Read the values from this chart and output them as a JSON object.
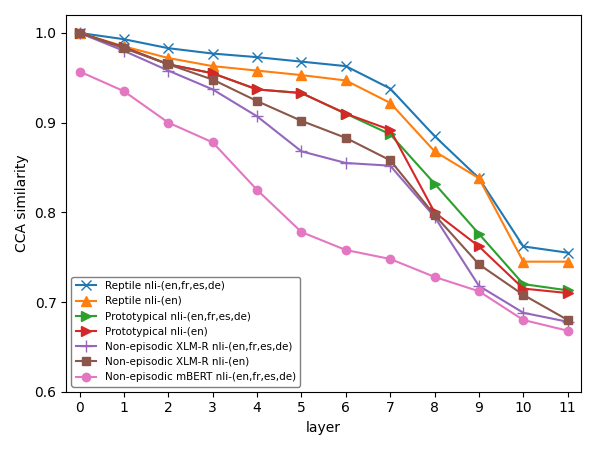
{
  "layers": [
    0,
    1,
    2,
    3,
    4,
    5,
    6,
    7,
    8,
    9,
    10,
    11
  ],
  "series": [
    {
      "label": "Reptile nli-(en,fr,es,de)",
      "color": "#1f77b4",
      "marker": "x",
      "markersize": 7,
      "values": [
        1.0,
        0.993,
        0.983,
        0.977,
        0.973,
        0.968,
        0.963,
        0.938,
        0.885,
        0.838,
        0.762,
        0.755
      ]
    },
    {
      "label": "Reptile nli-(en)",
      "color": "#ff7f0e",
      "marker": "^",
      "markersize": 7,
      "values": [
        1.0,
        0.985,
        0.972,
        0.963,
        0.958,
        0.953,
        0.947,
        0.922,
        0.868,
        0.838,
        0.745,
        0.745
      ]
    },
    {
      "label": "Prototypical nli-(en,fr,es,de)",
      "color": "#2ca02c",
      "marker": ">",
      "markersize": 7,
      "values": [
        1.0,
        0.984,
        0.965,
        0.955,
        0.937,
        0.933,
        0.91,
        0.887,
        0.832,
        0.776,
        0.72,
        0.713
      ]
    },
    {
      "label": "Prototypical nli-(en)",
      "color": "#d62728",
      "marker": ">",
      "markersize": 7,
      "values": [
        1.0,
        0.984,
        0.965,
        0.955,
        0.937,
        0.933,
        0.91,
        0.892,
        0.8,
        0.762,
        0.715,
        0.71
      ]
    },
    {
      "label": "Non-episodic XLM-R nli-(en,fr,es,de)",
      "color": "#9467bd",
      "marker": "+",
      "markersize": 8,
      "values": [
        1.0,
        0.98,
        0.958,
        0.937,
        0.907,
        0.868,
        0.855,
        0.852,
        0.795,
        0.718,
        0.688,
        0.678
      ]
    },
    {
      "label": "Non-episodic XLM-R nli-(en)",
      "color": "#8c564b",
      "marker": "s",
      "markersize": 6,
      "values": [
        1.0,
        0.983,
        0.965,
        0.948,
        0.924,
        0.902,
        0.883,
        0.858,
        0.797,
        0.742,
        0.708,
        0.68
      ]
    },
    {
      "label": "Non-episodic mBERT nli-(en,fr,es,de)",
      "color": "#e377c2",
      "marker": "o",
      "markersize": 6,
      "values": [
        0.957,
        0.935,
        0.9,
        0.878,
        0.825,
        0.778,
        0.758,
        0.748,
        0.728,
        0.712,
        0.68,
        0.668
      ]
    }
  ],
  "xlabel": "layer",
  "ylabel": "CCA similarity",
  "xlim": [
    -0.3,
    11.3
  ],
  "ylim": [
    0.6,
    1.02
  ],
  "yticks": [
    0.6,
    0.7,
    0.8,
    0.9,
    1.0
  ],
  "xticks": [
    0,
    1,
    2,
    3,
    4,
    5,
    6,
    7,
    8,
    9,
    10,
    11
  ],
  "legend_loc": "lower left",
  "legend_fontsize": 7.5,
  "linewidth": 1.5,
  "figsize": [
    5.96,
    4.5
  ],
  "dpi": 100
}
